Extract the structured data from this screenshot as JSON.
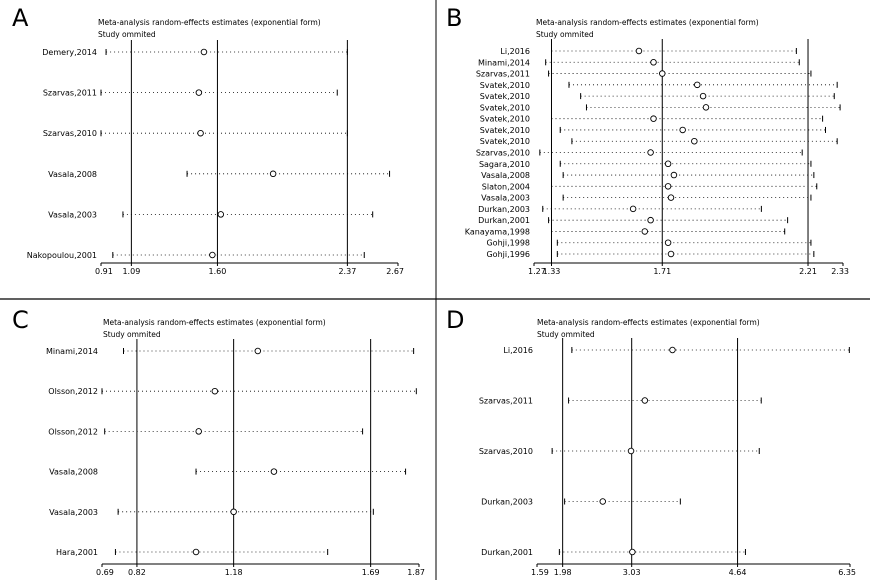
{
  "figure": {
    "divider_color": "#000000",
    "line_color": "#000000"
  },
  "chart_data": [
    {
      "panel": "A",
      "type": "forest-sensitivity",
      "title": "Meta-analysis random-effects estimates (exponential form)",
      "subtitle": "Study ommited",
      "xlim": [
        0.91,
        2.67
      ],
      "xticks": [
        "0.91",
        "1.09",
        "1.60",
        "2.37",
        "2.67"
      ],
      "ref_lines": [
        1.09,
        1.6,
        2.37
      ],
      "studies": [
        {
          "label": "Demery,2014",
          "estimate": 1.52,
          "lower": 0.94,
          "upper": 2.37
        },
        {
          "label": "Szarvas,2011",
          "estimate": 1.49,
          "lower": 0.91,
          "upper": 2.31
        },
        {
          "label": "Szarvas,2010",
          "estimate": 1.5,
          "lower": 0.91,
          "upper": 2.37
        },
        {
          "label": "Vasala,2008",
          "estimate": 1.93,
          "lower": 1.42,
          "upper": 2.62
        },
        {
          "label": "Vasala,2003",
          "estimate": 1.62,
          "lower": 1.04,
          "upper": 2.52
        },
        {
          "label": "Nakopoulou,2001",
          "estimate": 1.57,
          "lower": 0.98,
          "upper": 2.47
        }
      ]
    },
    {
      "panel": "B",
      "type": "forest-sensitivity",
      "title": "Meta-analysis random-effects estimates (exponential form)",
      "subtitle": "Study ommited",
      "xlim": [
        1.27,
        2.33
      ],
      "xticks": [
        "1.27",
        "1.33",
        "1.71",
        "2.21",
        "2.33"
      ],
      "ref_lines": [
        1.33,
        1.71,
        2.21
      ],
      "studies": [
        {
          "label": "Li,2016",
          "estimate": 1.63,
          "lower": 1.33,
          "upper": 2.17
        },
        {
          "label": "Minami,2014",
          "estimate": 1.68,
          "lower": 1.31,
          "upper": 2.18
        },
        {
          "label": "Szarvas,2011",
          "estimate": 1.71,
          "lower": 1.32,
          "upper": 2.22
        },
        {
          "label": "Svatek,2010",
          "estimate": 1.83,
          "lower": 1.39,
          "upper": 2.31
        },
        {
          "label": "Svatek,2010",
          "estimate": 1.85,
          "lower": 1.43,
          "upper": 2.3
        },
        {
          "label": "Svatek,2010",
          "estimate": 1.86,
          "lower": 1.45,
          "upper": 2.32
        },
        {
          "label": "Svatek,2010",
          "estimate": 1.68,
          "lower": 1.33,
          "upper": 2.26
        },
        {
          "label": "Svatek,2010",
          "estimate": 1.78,
          "lower": 1.36,
          "upper": 2.27
        },
        {
          "label": "Svatek,2010",
          "estimate": 1.82,
          "lower": 1.4,
          "upper": 2.31
        },
        {
          "label": "Szarvas,2010",
          "estimate": 1.67,
          "lower": 1.29,
          "upper": 2.19
        },
        {
          "label": "Sagara,2010",
          "estimate": 1.73,
          "lower": 1.36,
          "upper": 2.22
        },
        {
          "label": "Vasala,2008",
          "estimate": 1.75,
          "lower": 1.37,
          "upper": 2.23
        },
        {
          "label": "Slaton,2004",
          "estimate": 1.73,
          "lower": 1.33,
          "upper": 2.24
        },
        {
          "label": "Vasala,2003",
          "estimate": 1.74,
          "lower": 1.37,
          "upper": 2.22
        },
        {
          "label": "Durkan,2003",
          "estimate": 1.61,
          "lower": 1.3,
          "upper": 2.05
        },
        {
          "label": "Durkan,2001",
          "estimate": 1.67,
          "lower": 1.32,
          "upper": 2.14
        },
        {
          "label": "Kanayama,1998",
          "estimate": 1.65,
          "lower": 1.33,
          "upper": 2.13
        },
        {
          "label": "Gohji,1998",
          "estimate": 1.73,
          "lower": 1.35,
          "upper": 2.22
        },
        {
          "label": "Gohji,1996",
          "estimate": 1.74,
          "lower": 1.35,
          "upper": 2.23
        }
      ]
    },
    {
      "panel": "C",
      "type": "forest-sensitivity",
      "title": "Meta-analysis random-effects estimates (exponential form)",
      "subtitle": "Study ommited",
      "xlim": [
        0.69,
        1.87
      ],
      "xticks": [
        "0.69",
        "0.82",
        "1.18",
        "1.69",
        "1.87"
      ],
      "ref_lines": [
        0.82,
        1.18,
        1.69
      ],
      "studies": [
        {
          "label": "Minami,2014",
          "estimate": 1.27,
          "lower": 0.77,
          "upper": 1.85
        },
        {
          "label": "Olsson,2012",
          "estimate": 1.11,
          "lower": 0.69,
          "upper": 1.86
        },
        {
          "label": "Olsson,2012",
          "estimate": 1.05,
          "lower": 0.7,
          "upper": 1.66
        },
        {
          "label": "Vasala,2008",
          "estimate": 1.33,
          "lower": 1.04,
          "upper": 1.82
        },
        {
          "label": "Vasala,2003",
          "estimate": 1.18,
          "lower": 0.75,
          "upper": 1.7
        },
        {
          "label": "Hara,2001",
          "estimate": 1.04,
          "lower": 0.74,
          "upper": 1.53
        }
      ]
    },
    {
      "panel": "D",
      "type": "forest-sensitivity",
      "title": "Meta-analysis random-effects estimates (exponential form)",
      "subtitle": "Study ommited",
      "xlim": [
        1.59,
        6.35
      ],
      "xticks": [
        "1.59",
        "1.98",
        "3.03",
        "4.64",
        "6.35"
      ],
      "ref_lines": [
        1.98,
        3.03,
        4.64
      ],
      "studies": [
        {
          "label": "Li,2016",
          "estimate": 3.65,
          "lower": 2.12,
          "upper": 6.34
        },
        {
          "label": "Szarvas,2011",
          "estimate": 3.23,
          "lower": 2.07,
          "upper": 5.0
        },
        {
          "label": "Szarvas,2010",
          "estimate": 3.02,
          "lower": 1.82,
          "upper": 4.97
        },
        {
          "label": "Durkan,2003",
          "estimate": 2.59,
          "lower": 2.01,
          "upper": 3.77
        },
        {
          "label": "Durkan,2001",
          "estimate": 3.04,
          "lower": 1.93,
          "upper": 4.76
        }
      ]
    }
  ]
}
